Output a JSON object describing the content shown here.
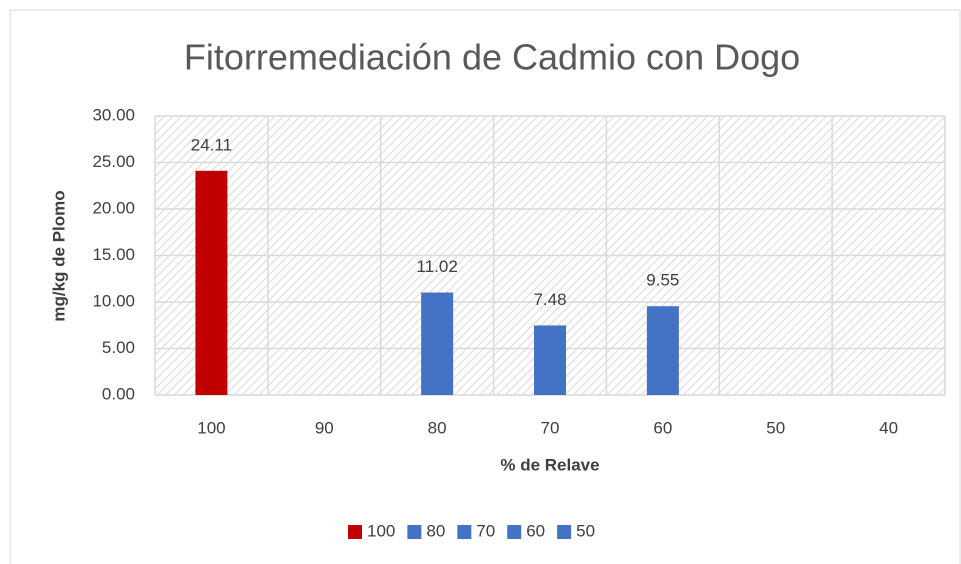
{
  "chart_data": {
    "type": "bar",
    "title": "Fitorremediación de Cadmio con Dogo",
    "x_label": "% de Relave",
    "y_label": "mg/kg de Plomo",
    "categories": [
      "100",
      "90",
      "80",
      "70",
      "60",
      "50",
      "40"
    ],
    "series": [
      {
        "name": "100",
        "color": "#c00000",
        "values": [
          24.11,
          null,
          null,
          null,
          null,
          null,
          null
        ]
      },
      {
        "name": "80",
        "color": "#4472c4",
        "values": [
          null,
          null,
          11.02,
          null,
          null,
          null,
          null
        ]
      },
      {
        "name": "70",
        "color": "#4472c4",
        "values": [
          null,
          null,
          null,
          7.48,
          null,
          null,
          null
        ]
      },
      {
        "name": "60",
        "color": "#4472c4",
        "values": [
          null,
          null,
          null,
          null,
          9.55,
          null,
          null
        ]
      },
      {
        "name": "50",
        "color": "#4472c4",
        "values": [
          null,
          null,
          null,
          null,
          null,
          null,
          null
        ]
      }
    ],
    "ylim": [
      0,
      30
    ],
    "yticks": [
      {
        "value": 0,
        "label": "0.00"
      },
      {
        "value": 5,
        "label": "5.00"
      },
      {
        "value": 10,
        "label": "10.00"
      },
      {
        "value": 15,
        "label": "15.00"
      },
      {
        "value": 20,
        "label": "20.00"
      },
      {
        "value": 25,
        "label": "25.00"
      },
      {
        "value": 30,
        "label": "30.00"
      }
    ],
    "grid": true,
    "legend": "bottom"
  }
}
